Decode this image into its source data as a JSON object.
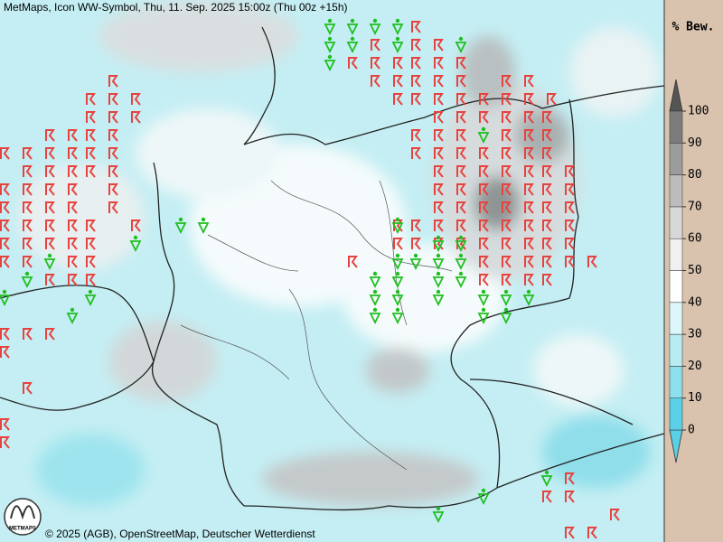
{
  "header": {
    "title": "MetMaps, Icon WW-Symbol, Thu, 11. Sep. 2025 15:00z (Thu 00z +15h)"
  },
  "legend": {
    "label": "% Bew.",
    "ticks": [
      0,
      10,
      20,
      30,
      40,
      50,
      60,
      70,
      80,
      90,
      100
    ],
    "colors": [
      "#5ad0e6",
      "#8edfec",
      "#b7ecf3",
      "#dcf6f9",
      "#ffffff",
      "#f0f0f0",
      "#d8d8d8",
      "#bcbcbc",
      "#9c9c9c",
      "#7c7c7c"
    ],
    "under_color": "#5ad0e6",
    "over_color": "#555555"
  },
  "footer": {
    "copyright": "© 2025 (AGB), OpenStreetMap, Deutscher Wetterdienst",
    "logo": "METMAPS"
  }
}
